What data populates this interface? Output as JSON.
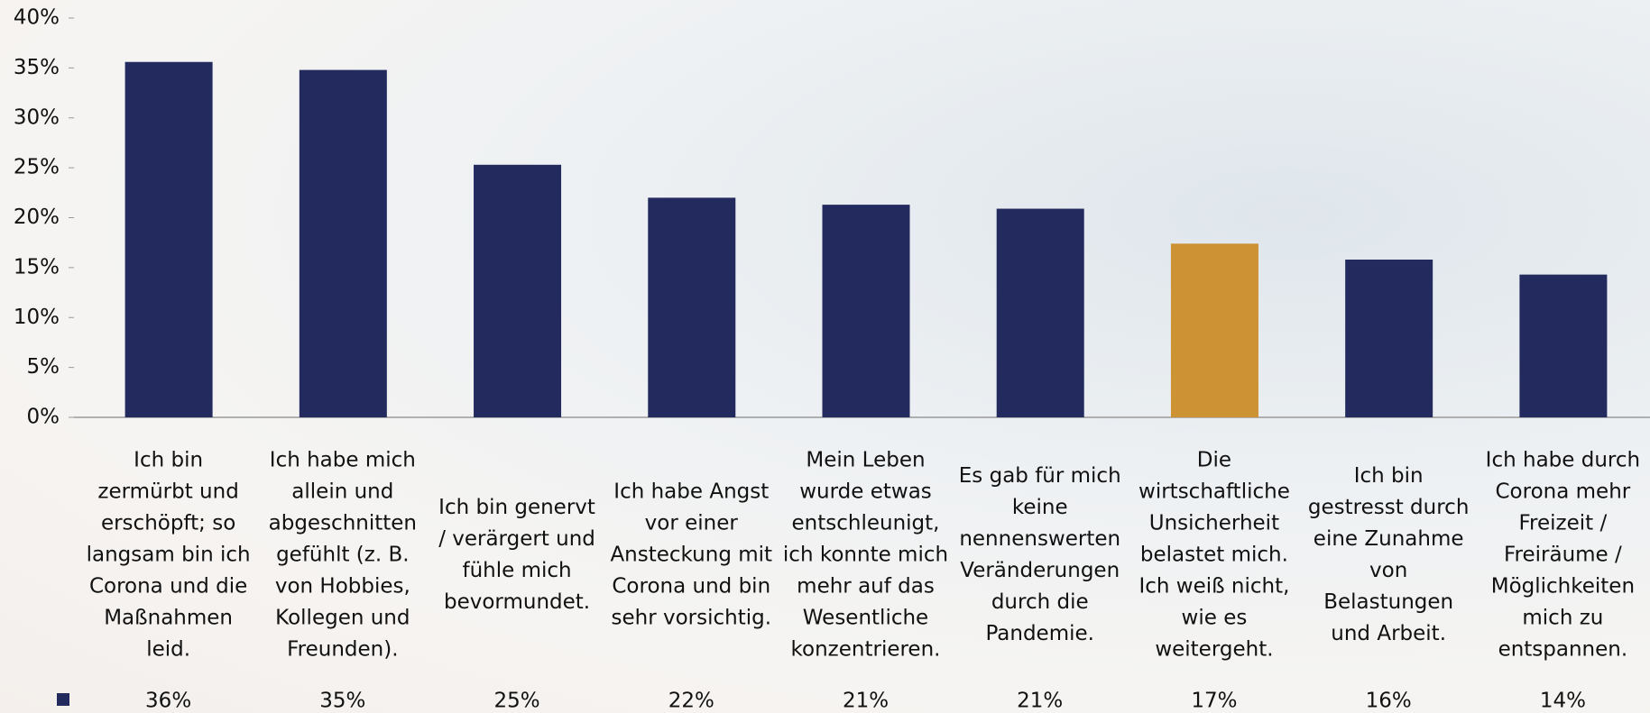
{
  "chart_data": {
    "type": "bar",
    "categories": [
      "Ich bin zermürbt und erschöpft; so langsam bin ich Corona und die Maßnahmen leid.",
      "Ich habe mich allein und abgeschnitten gefühlt (z. B. von Hobbies, Kollegen und Freunden).",
      "Ich bin genervt / verärgert und fühle mich bevormundet.",
      "Ich habe Angst vor einer Ansteckung mit Corona und bin sehr vorsichtig.",
      "Mein Leben wurde etwas entschleunigt, ich konnte mich mehr auf das Wesentliche konzentrieren.",
      "Es gab für mich keine nennenswerten Veränderungen durch die Pandemie.",
      "Die wirtschaftliche Unsicherheit belastet mich. Ich weiß nicht, wie es weitergeht.",
      "Ich bin gestresst durch eine Zunahme von Belastungen und Arbeit.",
      "Ich habe durch Corona mehr Freizeit / Freiräume / Möglichkeiten mich zu entspannen."
    ],
    "values": [
      35.6,
      34.8,
      25.3,
      22.0,
      21.3,
      20.9,
      17.4,
      15.8,
      14.3
    ],
    "value_labels": [
      "36%",
      "35%",
      "25%",
      "22%",
      "21%",
      "21%",
      "17%",
      "16%",
      "14%"
    ],
    "colors": [
      "#232a5e",
      "#232a5e",
      "#232a5e",
      "#232a5e",
      "#232a5e",
      "#232a5e",
      "#cc9233",
      "#232a5e",
      "#232a5e"
    ],
    "ylim": [
      0,
      40
    ],
    "yticks": [
      {
        "value": 0,
        "label": "0%"
      },
      {
        "value": 5,
        "label": "5%"
      },
      {
        "value": 10,
        "label": "10%"
      },
      {
        "value": 15,
        "label": "15%"
      },
      {
        "value": 20,
        "label": "20%"
      },
      {
        "value": 25,
        "label": "25%"
      },
      {
        "value": 30,
        "label": "30%"
      },
      {
        "value": 35,
        "label": "35%"
      },
      {
        "value": 40,
        "label": "40%"
      }
    ],
    "grid": false
  }
}
